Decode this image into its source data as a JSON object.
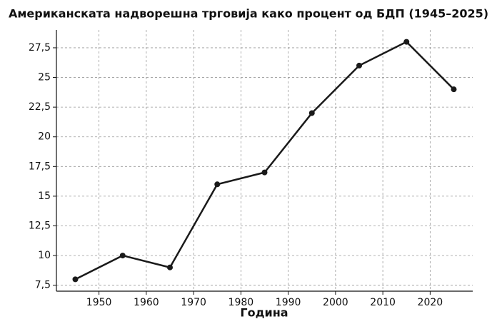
{
  "chart_data": {
    "type": "line",
    "title": "Американската надворешна трговија како процент од БДП (1945–2025)",
    "x_label": "Година",
    "x": [
      1945,
      1955,
      1965,
      1975,
      1985,
      1995,
      2005,
      2015,
      2025
    ],
    "series": [
      {
        "color": "#1a1a1a",
        "values": [
          8,
          10,
          9,
          16,
          17,
          22,
          26,
          28,
          24
        ]
      }
    ],
    "xlim": [
      1941,
      2029
    ],
    "xticks": [
      1950,
      1960,
      1970,
      1980,
      1990,
      2000,
      2010,
      2020
    ],
    "ylim": [
      7,
      29
    ],
    "yticks": [
      {
        "value": 7.5,
        "label": "7,5"
      },
      10,
      {
        "value": 12.5,
        "label": "12,5"
      },
      15,
      {
        "value": 17.5,
        "label": "17,5"
      },
      20,
      {
        "value": 22.5,
        "label": "22,5"
      },
      25,
      {
        "value": 27.5,
        "label": "27,5"
      }
    ],
    "grid": true
  }
}
